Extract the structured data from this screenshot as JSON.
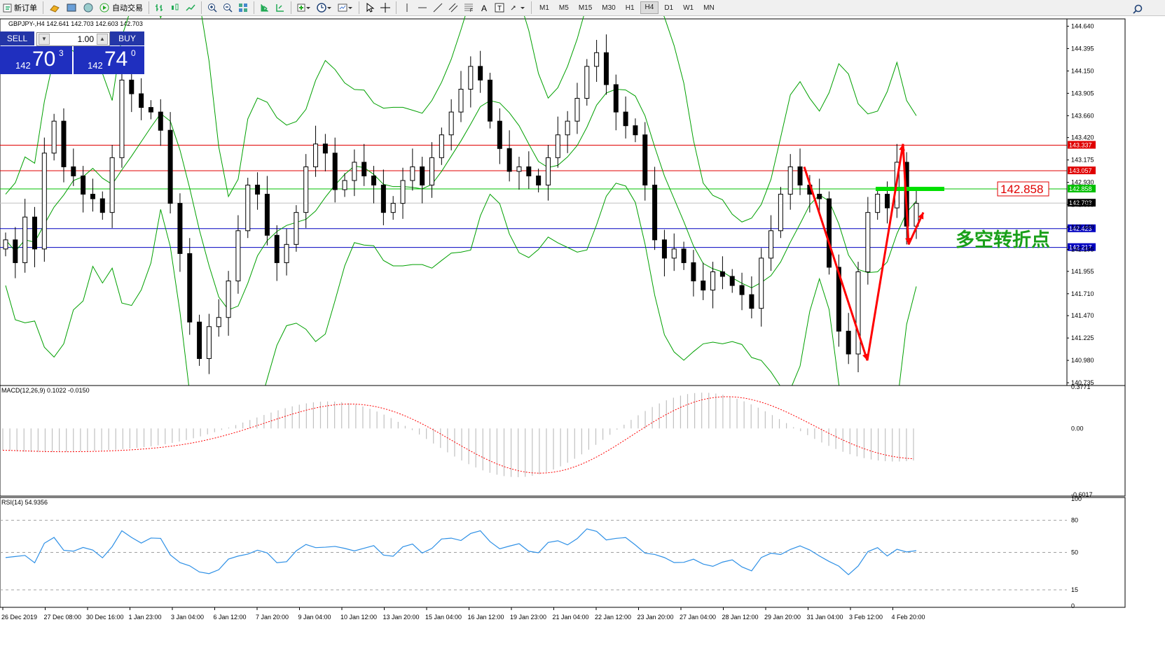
{
  "toolbar": {
    "new_order": "新订单",
    "auto_trading": "自动交易",
    "timeframes": [
      "M1",
      "M5",
      "M15",
      "M30",
      "H1",
      "H4",
      "D1",
      "W1",
      "MN"
    ],
    "active_timeframe": "H4",
    "icons": [
      "new-order-icon",
      "gold-bars-icon",
      "profiles-icon",
      "globe-icon",
      "auto-trading-icon",
      "bar-chart-icon",
      "candlestick-icon",
      "line-chart-icon",
      "zoom-in-icon",
      "zoom-out-icon",
      "tile-windows-icon",
      "chart-shift-icon",
      "autoscroll-icon",
      "indicators-icon",
      "periods-icon",
      "templates-icon",
      "cursor-icon",
      "crosshair-icon",
      "vertical-line-icon",
      "horizontal-line-icon",
      "trendline-icon",
      "equidistant-channel-icon",
      "fibonacci-icon",
      "text-icon",
      "text-label-icon",
      "arrows-icon",
      "search-icon"
    ]
  },
  "trade_panel": {
    "sell_label": "SELL",
    "buy_label": "BUY",
    "lot": "1.00",
    "sell_prefix": "142",
    "sell_big": "70",
    "sell_sup": "3",
    "buy_prefix": "142",
    "buy_big": "74",
    "buy_sup": "0",
    "colors": {
      "panel": "#2436a8",
      "quote": "#1f2fbf"
    }
  },
  "chart_data": [
    {
      "type": "candlestick",
      "title": "GBPJPY-,H4  142.641 142.703 142.603 142.703",
      "symbol": "GBPJPY-",
      "timeframe": "H4",
      "ohlc_last": [
        142.641,
        142.703,
        142.603,
        142.703
      ],
      "y_ticks": [
        "144.640",
        "144.395",
        "144.150",
        "143.905",
        "143.660",
        "143.420",
        "143.175",
        "142.930",
        "142.685",
        "142.440",
        "142.195",
        "141.955",
        "141.710",
        "141.470",
        "141.225",
        "140.980",
        "140.735"
      ],
      "ylim": [
        140.72,
        144.72
      ],
      "x_labels": [
        "26 Dec 2019",
        "27 Dec 08:00",
        "30 Dec 16:00",
        "1 Jan 23:00",
        "3 Jan 04:00",
        "6 Jan 12:00",
        "7 Jan 20:00",
        "9 Jan 04:00",
        "10 Jan 12:00",
        "13 Jan 20:00",
        "15 Jan 04:00",
        "16 Jan 12:00",
        "19 Jan 23:00",
        "21 Jan 04:00",
        "22 Jan 12:00",
        "23 Jan 20:00",
        "27 Jan 04:00",
        "28 Jan 12:00",
        "29 Jan 20:00",
        "31 Jan 04:00",
        "3 Feb 12:00",
        "4 Feb 20:00"
      ],
      "close_series": [
        142.3,
        142.05,
        142.55,
        142.2,
        143.25,
        143.6,
        143.1,
        143.0,
        142.8,
        142.75,
        142.6,
        143.2,
        144.05,
        143.9,
        143.75,
        143.7,
        143.5,
        142.7,
        142.15,
        141.4,
        141.0,
        141.35,
        141.45,
        141.85,
        142.4,
        142.9,
        142.8,
        142.35,
        142.05,
        142.25,
        142.6,
        143.1,
        143.35,
        143.25,
        142.85,
        142.95,
        143.15,
        143.0,
        142.9,
        142.6,
        142.7,
        142.95,
        143.1,
        142.9,
        143.2,
        143.45,
        143.7,
        143.95,
        144.2,
        144.05,
        143.6,
        143.3,
        143.05,
        143.1,
        143.0,
        142.9,
        143.2,
        143.45,
        143.6,
        143.85,
        144.2,
        144.35,
        144.0,
        143.7,
        143.55,
        143.45,
        142.9,
        142.3,
        142.1,
        142.2,
        142.05,
        141.85,
        141.75,
        141.95,
        141.9,
        141.8,
        141.7,
        141.55,
        142.1,
        142.4,
        142.8,
        143.1,
        142.9,
        142.8,
        142.75,
        142.0,
        141.3,
        141.05,
        141.95,
        142.6,
        142.8,
        142.65,
        143.15,
        142.45,
        142.7
      ],
      "bollinger": {
        "period": 20,
        "deviations": 2,
        "color": "#00a000"
      },
      "horizontal_lines": [
        {
          "price": "143.337",
          "color": "#e00000"
        },
        {
          "price": "143.057",
          "color": "#e00000"
        },
        {
          "price": "142.858",
          "color": "#00c000"
        },
        {
          "price": "142.703",
          "color": "#c0c0c0"
        },
        {
          "price": "142.423",
          "color": "#0000c0"
        },
        {
          "price": "142.217",
          "color": "#0000c0"
        }
      ],
      "price_callout": "142.858",
      "annotation_text": "多空转折点",
      "annotation_color": "#1aa01a",
      "zigzag_color": "#ff0000",
      "zigzag_prices": [
        143.1,
        140.98,
        143.35,
        142.25,
        142.6
      ],
      "green_level_bar": {
        "price": 142.858,
        "color": "#00e000"
      }
    },
    {
      "type": "bar",
      "title": "MACD(12,26,9) 0.1022 -0.0150",
      "params": [
        12,
        26,
        9
      ],
      "values": [
        0.1022,
        -0.015
      ],
      "y_ticks": [
        "0.3771",
        "0.00",
        "-0.6017"
      ],
      "ylim": [
        -0.6017,
        0.3771
      ],
      "signal_color": "#ff0000",
      "histogram_color": "#c0c0c0"
    },
    {
      "type": "line",
      "title": "RSI(14) 54.9356",
      "period": 14,
      "value": 54.9356,
      "y_ticks": [
        "100",
        "80",
        "50",
        "15",
        "0"
      ],
      "levels": [
        80,
        50,
        15
      ],
      "ylim": [
        0,
        100
      ],
      "line_color": "#2e90e6"
    }
  ]
}
